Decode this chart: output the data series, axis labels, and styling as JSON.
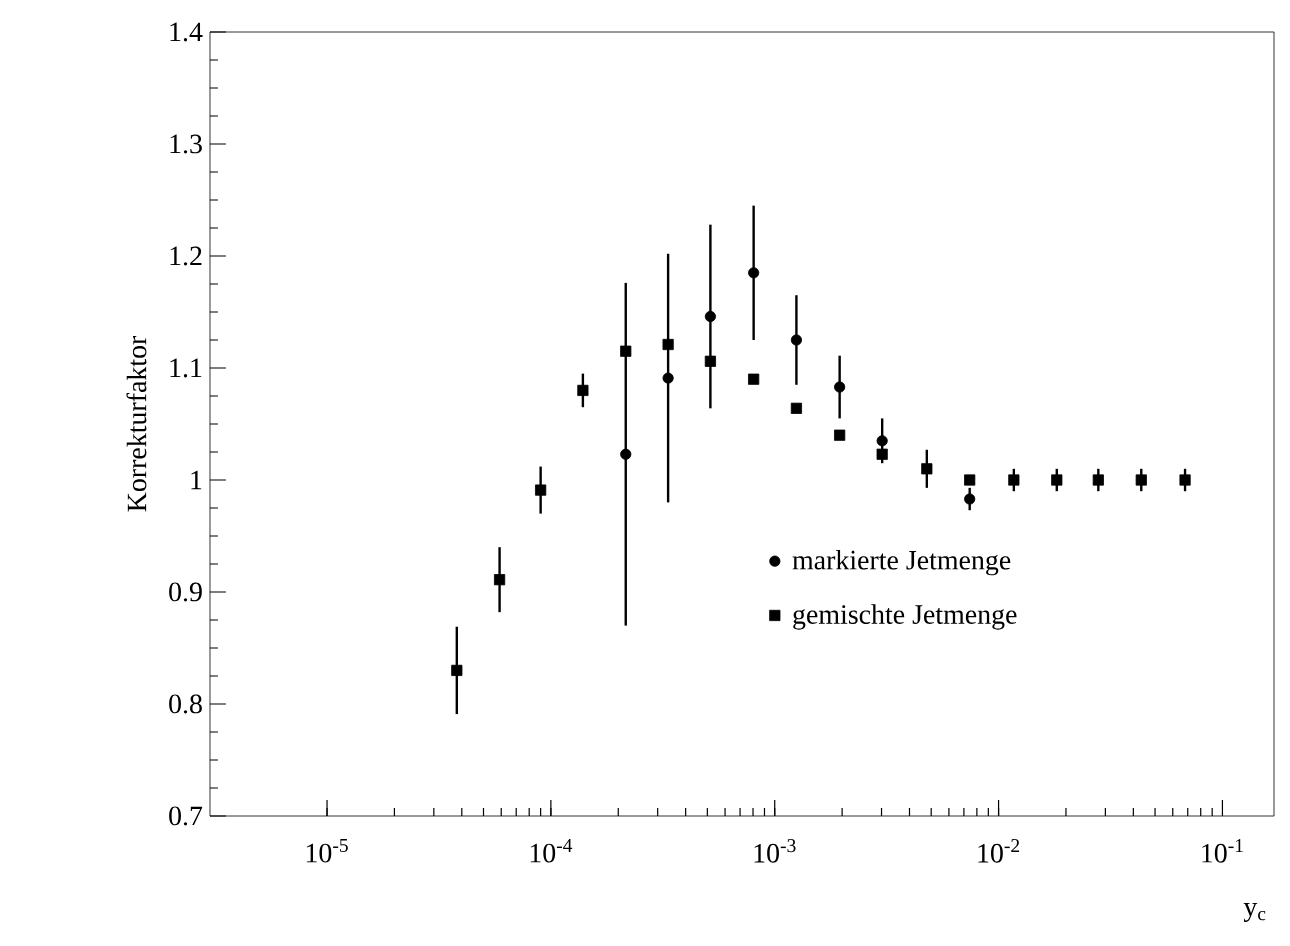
{
  "chart_data": {
    "type": "scatter",
    "xlabel": "y$_{c}$",
    "ylabel": "Korrekturfaktor",
    "log": "x",
    "grid": false,
    "legend": "bottom right",
    "xlim": [
      3e-06,
      0.17
    ],
    "ylim": [
      0.7,
      1.4
    ],
    "xticks": [
      {
        "value": 1e-05,
        "label": "10$^{-5}$"
      },
      {
        "value": 0.0001,
        "label": "10$^{-4}$"
      },
      {
        "value": 0.001,
        "label": "10$^{-3}$"
      },
      {
        "value": 0.01,
        "label": "10$^{-2}$"
      },
      {
        "value": 0.1,
        "label": "10$^{-1}$"
      }
    ],
    "yticks": [
      0.7,
      0.8,
      0.9,
      1,
      1.1,
      1.2,
      1.3,
      1.4
    ],
    "x": [
      3.8e-05,
      5.9e-05,
      9e-05,
      0.000139,
      0.000216,
      0.000334,
      0.000516,
      0.000805,
      0.00125,
      0.00195,
      0.00302,
      0.00478,
      0.00743,
      0.0117,
      0.0182,
      0.0279,
      0.0434,
      0.0681
    ],
    "series": [
      {
        "name": "markierte Jetmenge",
        "color": "#000000",
        "marker": "circle",
        "values": [
          null,
          null,
          null,
          null,
          1.023,
          1.091,
          1.146,
          1.185,
          1.125,
          1.083,
          1.035,
          null,
          0.983,
          null,
          null,
          null,
          null,
          null
        ],
        "errors": [
          null,
          null,
          null,
          null,
          0.153,
          0.111,
          0.082,
          0.06,
          0.04,
          0.028,
          0.02,
          null,
          0.01,
          null,
          null,
          null,
          null,
          null
        ]
      },
      {
        "name": "gemischte Jetmenge",
        "color": "#000000",
        "marker": "square",
        "values": [
          0.83,
          0.911,
          0.991,
          1.08,
          1.115,
          1.121,
          1.106,
          1.09,
          1.064,
          1.04,
          1.023,
          1.01,
          1.0,
          1.0,
          1.0,
          1.0,
          1.0,
          1.0
        ],
        "errors": [
          0.039,
          0.029,
          0.021,
          0.015,
          null,
          null,
          null,
          null,
          null,
          null,
          null,
          0.017,
          null,
          0.01,
          0.01,
          0.01,
          0.01,
          0.01
        ]
      }
    ]
  }
}
